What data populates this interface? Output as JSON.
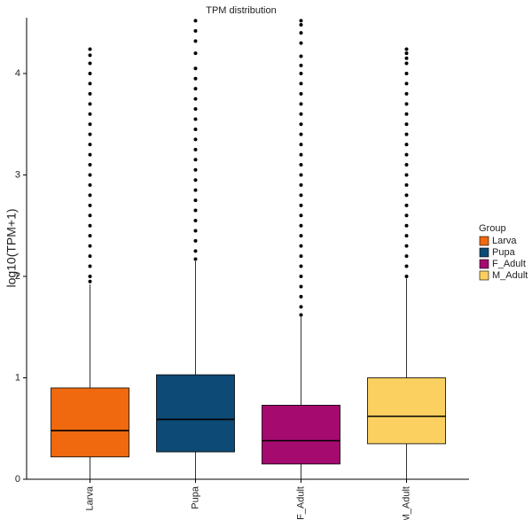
{
  "chart_data": {
    "type": "box",
    "title": "TPM distribution",
    "y_label": "log10(TPM+1)",
    "categories": [
      "Larva",
      "Pupa",
      "F_Adult",
      "M_Adult"
    ],
    "colors": [
      "#f0690f",
      "#0d4a75",
      "#a50a6f",
      "#fbd060"
    ],
    "legend_title": "Group",
    "ylim": [
      0,
      4.55
    ],
    "yticks": [
      0,
      1,
      2,
      3,
      4
    ],
    "boxes": [
      {
        "min": 0,
        "q1": 0.22,
        "median": 0.48,
        "q3": 0.9,
        "max": 1.92,
        "outliers": [
          1.95,
          2.0,
          2.1,
          2.2,
          2.3,
          2.4,
          2.5,
          2.6,
          2.7,
          2.8,
          2.9,
          3.0,
          3.1,
          3.2,
          3.3,
          3.4,
          3.5,
          3.6,
          3.7,
          3.8,
          3.9,
          4.0,
          4.1,
          4.18,
          4.24
        ]
      },
      {
        "min": 0,
        "q1": 0.27,
        "median": 0.59,
        "q3": 1.03,
        "max": 2.15,
        "outliers": [
          2.17,
          2.25,
          2.35,
          2.45,
          2.55,
          2.65,
          2.75,
          2.85,
          2.95,
          3.05,
          3.15,
          3.25,
          3.35,
          3.45,
          3.55,
          3.65,
          3.75,
          3.85,
          3.95,
          4.05,
          4.2,
          4.32,
          4.42,
          4.52
        ]
      },
      {
        "min": 0,
        "q1": 0.15,
        "median": 0.38,
        "q3": 0.73,
        "max": 1.6,
        "outliers": [
          1.62,
          1.7,
          1.8,
          1.9,
          2.0,
          2.1,
          2.2,
          2.3,
          2.4,
          2.5,
          2.6,
          2.7,
          2.8,
          2.9,
          3.0,
          3.1,
          3.2,
          3.3,
          3.4,
          3.5,
          3.6,
          3.7,
          3.8,
          3.9,
          4.0,
          4.08,
          4.17,
          4.3,
          4.4,
          4.48,
          4.52
        ]
      },
      {
        "min": 0,
        "q1": 0.35,
        "median": 0.62,
        "q3": 1.0,
        "max": 1.98,
        "outliers": [
          2.0,
          2.1,
          2.2,
          2.3,
          2.4,
          2.5,
          2.6,
          2.7,
          2.8,
          2.9,
          3.0,
          3.1,
          3.2,
          3.3,
          3.4,
          3.5,
          3.6,
          3.7,
          3.8,
          3.9,
          4.0,
          4.1,
          4.15,
          4.2,
          4.24
        ]
      }
    ]
  }
}
